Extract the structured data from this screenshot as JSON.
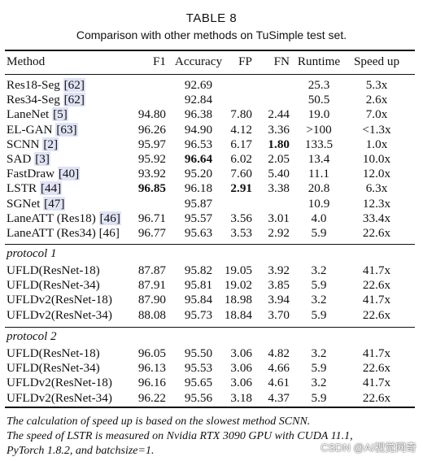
{
  "table_label": "TABLE 8",
  "caption": "Comparison with other methods on TuSimple test set.",
  "columns": [
    "Method",
    "F1",
    "Accuracy",
    "FP",
    "FN",
    "Runtime",
    "Speed up"
  ],
  "group1": [
    {
      "method": "Res18-Seg ",
      "ref": "[62]",
      "f1": "",
      "acc": "92.69",
      "fp": "",
      "fn": "",
      "runtime": "25.3",
      "speed": "5.3x"
    },
    {
      "method": "Res34-Seg ",
      "ref": "[62]",
      "f1": "",
      "acc": "92.84",
      "fp": "",
      "fn": "",
      "runtime": "50.5",
      "speed": "2.6x"
    },
    {
      "method": "LaneNet ",
      "ref": "[5]",
      "f1": "94.80",
      "acc": "96.38",
      "fp": "7.80",
      "fn": "2.44",
      "runtime": "19.0",
      "speed": "7.0x"
    },
    {
      "method": "EL-GAN ",
      "ref": "[63]",
      "f1": "96.26",
      "acc": "94.90",
      "fp": "4.12",
      "fn": "3.36",
      "runtime": ">100",
      "speed": "<1.3x"
    },
    {
      "method": "SCNN ",
      "ref": "[2]",
      "f1": "95.97",
      "acc": "96.53",
      "fp": "6.17",
      "fn": "1.80",
      "runtime": "133.5",
      "speed": "1.0x"
    },
    {
      "method": "SAD ",
      "ref": "[3]",
      "f1": "95.92",
      "acc": "96.64",
      "fp": "6.02",
      "fn": "2.05",
      "runtime": "13.4",
      "speed": "10.0x"
    },
    {
      "method": "FastDraw ",
      "ref": "[40]",
      "f1": "93.92",
      "acc": "95.20",
      "fp": "7.60",
      "fn": "5.40",
      "runtime": "11.1",
      "speed": "12.0x"
    },
    {
      "method": "LSTR ",
      "ref": "[44]",
      "f1": "96.85",
      "acc": "96.18",
      "fp": "2.91",
      "fn": "3.38",
      "runtime": "20.8",
      "speed": "6.3x"
    },
    {
      "method": "SGNet ",
      "ref": "[47]",
      "f1": "",
      "acc": "95.87",
      "fp": "",
      "fn": "",
      "runtime": "10.9",
      "speed": "12.3x"
    },
    {
      "method": "LaneATT (Res18) ",
      "ref": "[46]",
      "f1": "96.71",
      "acc": "95.57",
      "fp": "3.56",
      "fn": "3.01",
      "runtime": "4.0",
      "speed": "33.4x"
    },
    {
      "method": "LaneATT (Res34) [46]",
      "ref": "",
      "f1": "96.77",
      "acc": "95.63",
      "fp": "3.53",
      "fn": "2.92",
      "runtime": "5.9",
      "speed": "22.6x"
    }
  ],
  "protocol1": {
    "label": "protocol 1",
    "rows": [
      {
        "method": "UFLD(ResNet-18)",
        "f1": "87.87",
        "acc": "95.82",
        "fp": "19.05",
        "fn": "3.92",
        "runtime": "3.2",
        "speed": "41.7x"
      },
      {
        "method": "UFLD(ResNet-34)",
        "f1": "87.91",
        "acc": "95.81",
        "fp": "19.02",
        "fn": "3.85",
        "runtime": "5.9",
        "speed": "22.6x"
      },
      {
        "method": "UFLDv2(ResNet-18)",
        "f1": "87.90",
        "acc": "95.84",
        "fp": "18.98",
        "fn": "3.94",
        "runtime": "3.2",
        "speed": "41.7x"
      },
      {
        "method": "UFLDv2(ResNet-34)",
        "f1": "88.08",
        "acc": "95.73",
        "fp": "18.84",
        "fn": "3.70",
        "runtime": "5.9",
        "speed": "22.6x"
      }
    ]
  },
  "protocol2": {
    "label": "protocol 2",
    "rows": [
      {
        "method": "UFLD(ResNet-18)",
        "f1": "96.05",
        "acc": "95.50",
        "fp": "3.06",
        "fn": "4.82",
        "runtime": "3.2",
        "speed": "41.7x"
      },
      {
        "method": "UFLD(ResNet-34)",
        "f1": "96.13",
        "acc": "95.53",
        "fp": "3.06",
        "fn": "4.66",
        "runtime": "5.9",
        "speed": "22.6x"
      },
      {
        "method": "UFLDv2(ResNet-18)",
        "f1": "96.16",
        "acc": "95.65",
        "fp": "3.06",
        "fn": "4.61",
        "runtime": "3.2",
        "speed": "41.7x"
      },
      {
        "method": "UFLDv2(ResNet-34)",
        "f1": "96.22",
        "acc": "95.56",
        "fp": "3.18",
        "fn": "4.37",
        "runtime": "5.9",
        "speed": "22.6x"
      }
    ]
  },
  "notes": [
    "The calculation of speed up is based on the slowest method SCNN.",
    "The speed of LSTR is measured on Nvidia RTX 3090 GPU with CUDA 11.1,",
    "PyTorch 1.8.2, and batchsize=1."
  ],
  "watermark": "CSDN @AI视觉网奇",
  "ref_highlight_color": "#dfe3f4"
}
